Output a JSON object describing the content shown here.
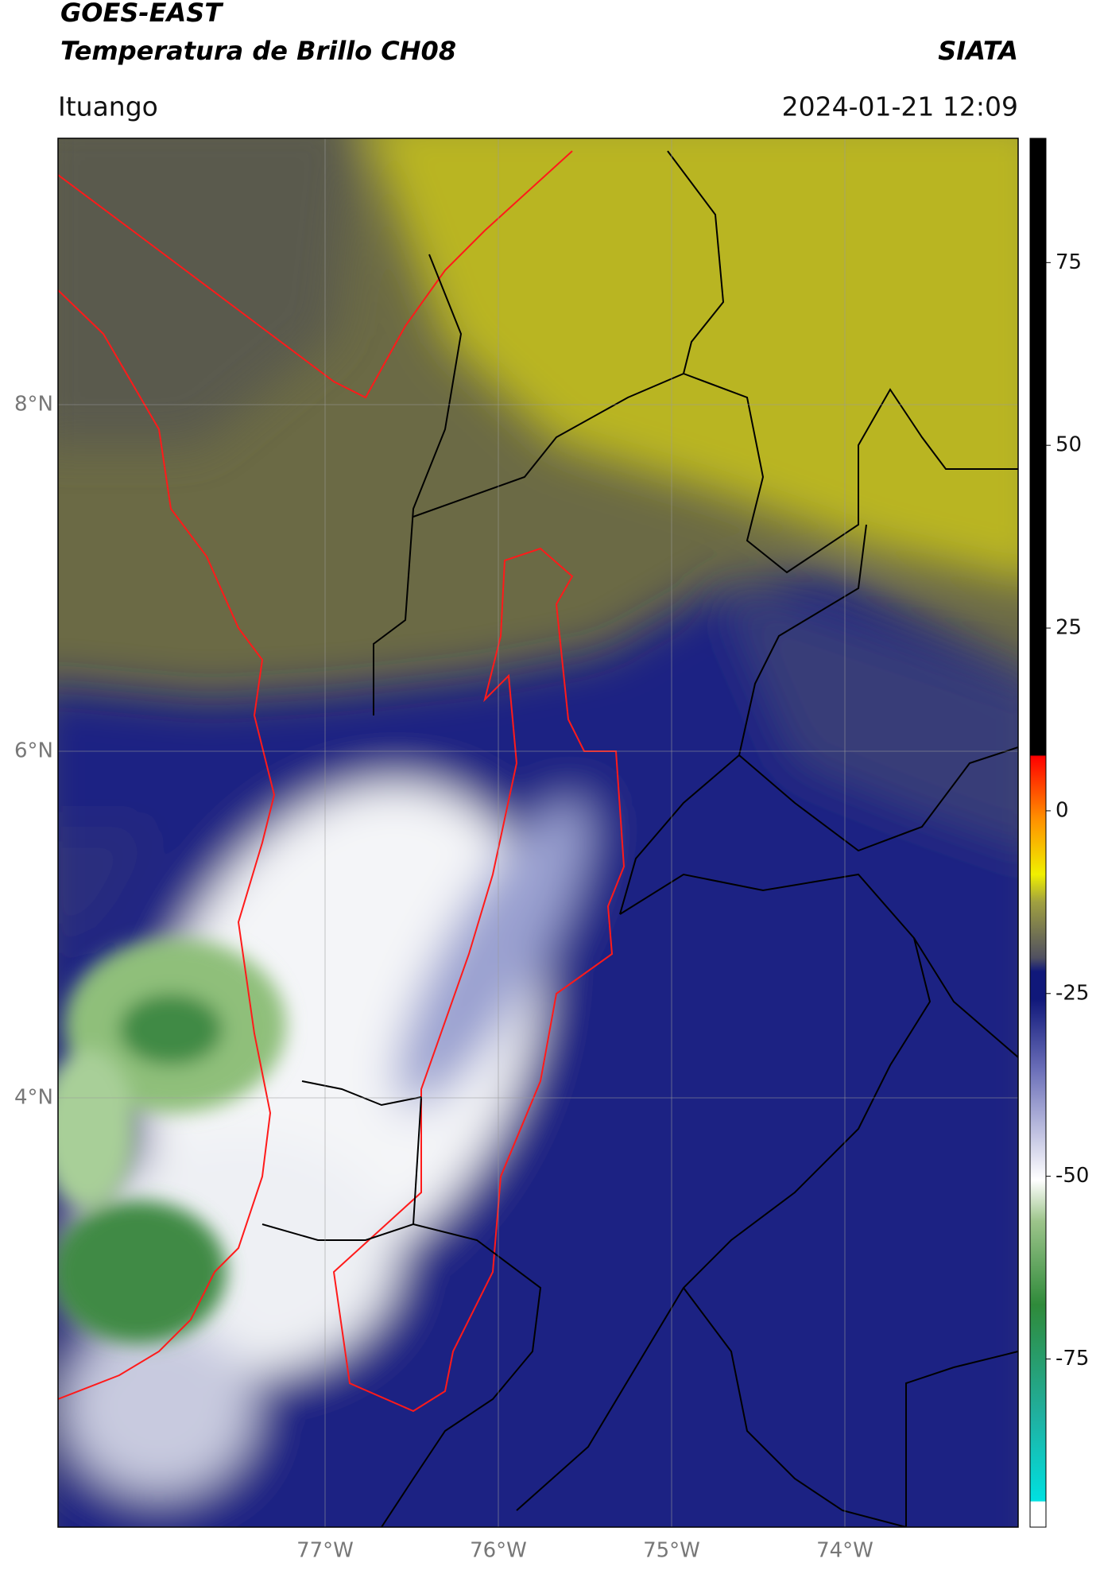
{
  "header": {
    "title": "GOES-EAST",
    "subtitle": "Temperatura de Brillo CH08",
    "agency": "SIATA",
    "location": "Ituango",
    "datetime": "2024-01-21 12:09"
  },
  "map": {
    "lon_ticks": [
      "77°W",
      "76°W",
      "75°W",
      "74°W"
    ],
    "lat_ticks": [
      "8°N",
      "6°N",
      "4°N"
    ]
  },
  "colorbar": {
    "lim": [
      -98,
      92
    ],
    "ticks": [
      75,
      50,
      25,
      0,
      -25,
      -50,
      -75
    ]
  }
}
